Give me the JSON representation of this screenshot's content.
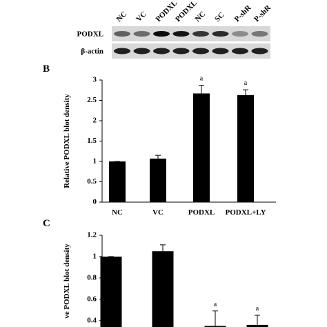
{
  "blot": {
    "lanes": [
      "NC",
      "VC",
      "PODXL",
      "PODXL",
      "NC",
      "SC",
      "P-shR",
      "P-shR"
    ],
    "rows": [
      "PODXL",
      "β-actin"
    ]
  },
  "chart_data": [
    {
      "type": "bar",
      "panel": "B",
      "y_label": "Relative PODXL blot density",
      "categories": [
        "NC",
        "VC",
        "PODXL",
        "PODXL+LY"
      ],
      "values": [
        1,
        1.07,
        2.67,
        2.63
      ],
      "errors": [
        0,
        0.08,
        0.2,
        0.13
      ],
      "annotations": [
        null,
        null,
        "a",
        "a"
      ],
      "color": "#000000",
      "ylim": [
        0,
        3
      ],
      "yticks": [
        0,
        0.5,
        1,
        1.5,
        2,
        2.5,
        3
      ]
    },
    {
      "type": "bar",
      "panel": "C",
      "y_label": "ve PODXL blot density",
      "values": [
        1,
        1.05,
        0.35,
        0.36
      ],
      "errors": [
        0,
        0.06,
        0.14,
        0.09
      ],
      "annotations": [
        null,
        null,
        "a",
        "a"
      ],
      "color": "#000000",
      "ylim": [
        0.34,
        1.2
      ],
      "yticks": [
        0.4,
        0.6,
        0.8,
        1,
        1.2
      ]
    }
  ]
}
